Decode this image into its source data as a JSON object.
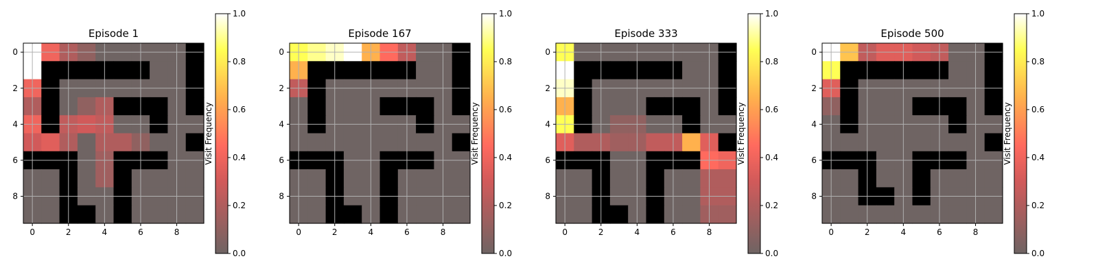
{
  "colormap": {
    "name": "hot-like",
    "stops": [
      {
        "v": 0.0,
        "color": "#6f6463"
      },
      {
        "v": 0.3,
        "color": "#d15a5a"
      },
      {
        "v": 0.45,
        "color": "#ff6a5e"
      },
      {
        "v": 0.65,
        "color": "#ffb14d"
      },
      {
        "v": 0.85,
        "color": "#ffff55"
      },
      {
        "v": 1.0,
        "color": "#ffffff"
      }
    ]
  },
  "wall_color": "#000000",
  "chart_data": [
    {
      "type": "heatmap",
      "title": "Episode 1",
      "xticks": [
        0,
        2,
        4,
        6,
        8
      ],
      "yticks": [
        0,
        2,
        4,
        6,
        8
      ],
      "grid": true,
      "colorbar": {
        "label": "Visit Frequency",
        "ticks": [
          "0.0",
          "0.2",
          "0.4",
          "0.6",
          "0.8",
          "1.0"
        ],
        "range": [
          0,
          1
        ]
      },
      "walls": [
        [
          0,
          0,
          0,
          0,
          0,
          0,
          0,
          0,
          0,
          1
        ],
        [
          0,
          1,
          1,
          1,
          1,
          1,
          1,
          0,
          0,
          1
        ],
        [
          0,
          1,
          0,
          0,
          0,
          0,
          0,
          0,
          0,
          1
        ],
        [
          0,
          1,
          0,
          0,
          0,
          1,
          1,
          1,
          0,
          1
        ],
        [
          0,
          1,
          0,
          0,
          0,
          0,
          0,
          1,
          0,
          0
        ],
        [
          0,
          0,
          0,
          0,
          0,
          0,
          0,
          0,
          0,
          1
        ],
        [
          1,
          1,
          1,
          0,
          0,
          1,
          1,
          1,
          0,
          0
        ],
        [
          0,
          0,
          1,
          0,
          0,
          1,
          0,
          0,
          0,
          0
        ],
        [
          0,
          0,
          1,
          0,
          0,
          1,
          0,
          0,
          0,
          0
        ],
        [
          0,
          0,
          1,
          1,
          0,
          1,
          0,
          0,
          0,
          0
        ]
      ],
      "values": [
        [
          1.0,
          0.4,
          0.2,
          0.1,
          0,
          0,
          0,
          0,
          0,
          0
        ],
        [
          1.0,
          0,
          0,
          0,
          0,
          0,
          0,
          0,
          0,
          0
        ],
        [
          0.4,
          0,
          0,
          0,
          0,
          0,
          0,
          0,
          0,
          0
        ],
        [
          0.2,
          0,
          0,
          0.1,
          0.2,
          0,
          0,
          0,
          0,
          0
        ],
        [
          0.4,
          0,
          0.25,
          0.3,
          0.25,
          0,
          0,
          0,
          0,
          0
        ],
        [
          0.3,
          0.35,
          0.2,
          0,
          0.2,
          0.2,
          0.1,
          0,
          0,
          0
        ],
        [
          0,
          0,
          0,
          0,
          0.15,
          0,
          0,
          0,
          0,
          0
        ],
        [
          0,
          0,
          0,
          0,
          0.15,
          0,
          0,
          0,
          0,
          0
        ],
        [
          0,
          0,
          0,
          0,
          0,
          0,
          0,
          0,
          0,
          0
        ],
        [
          0,
          0,
          0,
          0,
          0,
          0,
          0,
          0,
          0,
          0
        ]
      ]
    },
    {
      "type": "heatmap",
      "title": "Episode 167",
      "xticks": [
        0,
        2,
        4,
        6,
        8
      ],
      "yticks": [
        0,
        2,
        4,
        6,
        8
      ],
      "grid": true,
      "colorbar": {
        "label": "Visit Frequency",
        "ticks": [
          "0.0",
          "0.2",
          "0.4",
          "0.6",
          "0.8",
          "1.0"
        ],
        "range": [
          0,
          1
        ]
      },
      "walls": [
        [
          0,
          0,
          0,
          0,
          0,
          0,
          0,
          0,
          0,
          1
        ],
        [
          0,
          1,
          1,
          1,
          1,
          1,
          1,
          0,
          0,
          1
        ],
        [
          0,
          1,
          0,
          0,
          0,
          0,
          0,
          0,
          0,
          1
        ],
        [
          0,
          1,
          0,
          0,
          0,
          1,
          1,
          1,
          0,
          1
        ],
        [
          0,
          1,
          0,
          0,
          0,
          0,
          0,
          1,
          0,
          0
        ],
        [
          0,
          0,
          0,
          0,
          0,
          0,
          0,
          0,
          0,
          1
        ],
        [
          1,
          1,
          1,
          0,
          0,
          1,
          1,
          1,
          0,
          0
        ],
        [
          0,
          0,
          1,
          0,
          0,
          1,
          0,
          0,
          0,
          0
        ],
        [
          0,
          0,
          1,
          0,
          0,
          1,
          0,
          0,
          0,
          0
        ],
        [
          0,
          0,
          1,
          1,
          0,
          1,
          0,
          0,
          0,
          0
        ]
      ],
      "values": [
        [
          0.85,
          0.9,
          0.95,
          1.0,
          0.65,
          0.45,
          0.25,
          0,
          0,
          0
        ],
        [
          0.65,
          0,
          0,
          0,
          0,
          0,
          0,
          0,
          0,
          0
        ],
        [
          0.25,
          0,
          0,
          0,
          0,
          0,
          0,
          0,
          0,
          0
        ],
        [
          0,
          0,
          0,
          0,
          0,
          0,
          0,
          0,
          0,
          0
        ],
        [
          0,
          0,
          0,
          0,
          0,
          0,
          0,
          0,
          0,
          0
        ],
        [
          0,
          0,
          0,
          0,
          0,
          0,
          0,
          0,
          0,
          0
        ],
        [
          0,
          0,
          0,
          0,
          0,
          0,
          0,
          0,
          0,
          0
        ],
        [
          0,
          0,
          0,
          0,
          0,
          0,
          0,
          0,
          0,
          0
        ],
        [
          0,
          0,
          0,
          0,
          0,
          0,
          0,
          0,
          0,
          0
        ],
        [
          0,
          0,
          0,
          0,
          0,
          0,
          0,
          0,
          0,
          0
        ]
      ]
    },
    {
      "type": "heatmap",
      "title": "Episode 333",
      "xticks": [
        0,
        2,
        4,
        6,
        8
      ],
      "yticks": [
        0,
        2,
        4,
        6,
        8
      ],
      "grid": true,
      "colorbar": {
        "label": "Visit Frequency",
        "ticks": [
          "0.0",
          "0.2",
          "0.4",
          "0.6",
          "0.8",
          "1.0"
        ],
        "range": [
          0,
          1
        ]
      },
      "walls": [
        [
          0,
          0,
          0,
          0,
          0,
          0,
          0,
          0,
          0,
          1
        ],
        [
          0,
          1,
          1,
          1,
          1,
          1,
          1,
          0,
          0,
          1
        ],
        [
          0,
          1,
          0,
          0,
          0,
          0,
          0,
          0,
          0,
          1
        ],
        [
          0,
          1,
          0,
          0,
          0,
          1,
          1,
          1,
          0,
          1
        ],
        [
          0,
          1,
          0,
          0,
          0,
          0,
          0,
          1,
          0,
          0
        ],
        [
          0,
          0,
          0,
          0,
          0,
          0,
          0,
          0,
          0,
          1
        ],
        [
          1,
          1,
          1,
          0,
          0,
          1,
          1,
          1,
          0,
          0
        ],
        [
          0,
          0,
          1,
          0,
          0,
          1,
          0,
          0,
          0,
          0
        ],
        [
          0,
          0,
          1,
          0,
          0,
          1,
          0,
          0,
          0,
          0
        ],
        [
          0,
          0,
          1,
          1,
          0,
          1,
          0,
          0,
          0,
          0
        ]
      ],
      "values": [
        [
          0.85,
          0,
          0,
          0,
          0,
          0,
          0,
          0,
          0,
          0
        ],
        [
          1.0,
          0,
          0,
          0,
          0,
          0,
          0,
          0,
          0,
          0
        ],
        [
          0.95,
          0,
          0,
          0,
          0,
          0,
          0,
          0,
          0,
          0
        ],
        [
          0.65,
          0,
          0,
          0,
          0,
          0,
          0,
          0,
          0,
          0
        ],
        [
          0.85,
          0,
          0,
          0.1,
          0.1,
          0,
          0,
          0,
          0,
          0
        ],
        [
          0.35,
          0.2,
          0.2,
          0.15,
          0.15,
          0.25,
          0.25,
          0.65,
          0.35,
          0
        ],
        [
          0,
          0,
          0,
          0,
          0,
          0,
          0,
          0,
          0.45,
          0.4
        ],
        [
          0,
          0,
          0,
          0,
          0,
          0,
          0,
          0,
          0.2,
          0.2
        ],
        [
          0,
          0,
          0,
          0,
          0,
          0,
          0,
          0,
          0.2,
          0.2
        ],
        [
          0,
          0,
          0,
          0,
          0,
          0,
          0,
          0,
          0.15,
          0.15
        ]
      ]
    },
    {
      "type": "heatmap",
      "title": "Episode 500",
      "xticks": [
        0,
        2,
        4,
        6,
        8
      ],
      "yticks": [
        0,
        2,
        4,
        6,
        8
      ],
      "grid": true,
      "colorbar": {
        "label": "Visit Frequency",
        "ticks": [
          "0.0",
          "0.2",
          "0.4",
          "0.6",
          "0.8",
          "1.0"
        ],
        "range": [
          0,
          1
        ]
      },
      "walls": [
        [
          0,
          0,
          0,
          0,
          0,
          0,
          0,
          0,
          0,
          1
        ],
        [
          0,
          1,
          1,
          1,
          1,
          1,
          1,
          0,
          0,
          1
        ],
        [
          0,
          1,
          0,
          0,
          0,
          0,
          0,
          0,
          0,
          1
        ],
        [
          0,
          1,
          0,
          0,
          0,
          1,
          1,
          1,
          0,
          1
        ],
        [
          0,
          1,
          0,
          0,
          0,
          0,
          0,
          1,
          0,
          0
        ],
        [
          0,
          0,
          0,
          0,
          0,
          0,
          0,
          0,
          0,
          1
        ],
        [
          1,
          1,
          1,
          0,
          0,
          1,
          1,
          1,
          0,
          0
        ],
        [
          0,
          0,
          1,
          0,
          0,
          1,
          0,
          0,
          0,
          0
        ],
        [
          0,
          0,
          1,
          1,
          0,
          1,
          0,
          0,
          0,
          0
        ],
        [
          0,
          0,
          0,
          0,
          0,
          0,
          0,
          0,
          0,
          0
        ]
      ],
      "values": [
        [
          1.0,
          0.7,
          0.25,
          0.35,
          0.35,
          0.3,
          0.25,
          0,
          0,
          0
        ],
        [
          0.85,
          0,
          0,
          0,
          0,
          0,
          0,
          0,
          0,
          0
        ],
        [
          0.35,
          0,
          0,
          0,
          0,
          0,
          0,
          0,
          0,
          0
        ],
        [
          0.1,
          0,
          0,
          0,
          0,
          0,
          0,
          0,
          0,
          0
        ],
        [
          0,
          0,
          0,
          0,
          0,
          0,
          0,
          0,
          0,
          0
        ],
        [
          0,
          0,
          0,
          0,
          0,
          0,
          0,
          0,
          0,
          0
        ],
        [
          0,
          0,
          0,
          0,
          0,
          0,
          0,
          0,
          0,
          0
        ],
        [
          0,
          0,
          0,
          0,
          0,
          0,
          0,
          0,
          0,
          0
        ],
        [
          0,
          0,
          0,
          0,
          0,
          0,
          0,
          0,
          0,
          0
        ],
        [
          0,
          0,
          0,
          0,
          0,
          0,
          0,
          0,
          0,
          0
        ]
      ]
    }
  ]
}
